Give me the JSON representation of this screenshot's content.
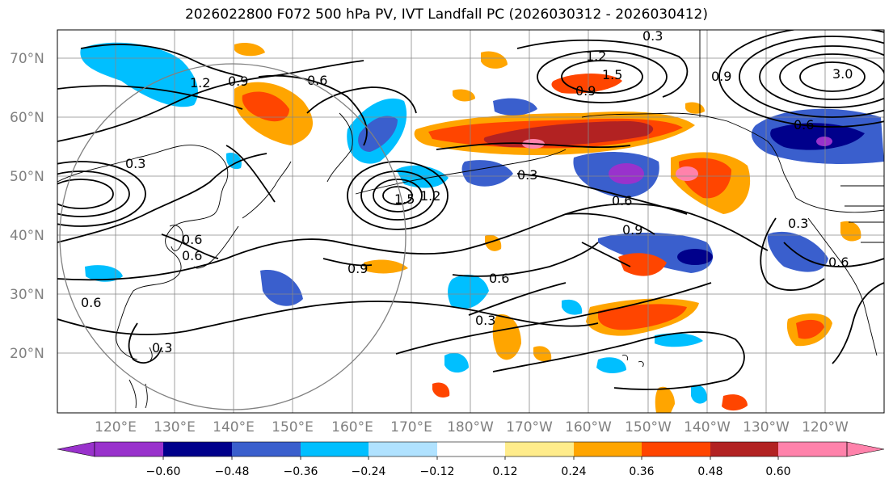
{
  "title": "2026022800 F072 500 hPa PV, IVT Landfall PC (2026030312 - 2026030412)",
  "lat_labels": [
    "70°N",
    "60°N",
    "50°N",
    "40°N",
    "30°N",
    "20°N"
  ],
  "lon_labels": [
    "120°E",
    "130°E",
    "140°E",
    "150°E",
    "160°E",
    "170°E",
    "180°W",
    "170°W",
    "160°W",
    "150°W",
    "140°W",
    "130°W",
    "120°W"
  ],
  "colorbar": {
    "ticks": [
      "−0.60",
      "−0.48",
      "−0.36",
      "−0.24",
      "−0.12",
      "0.12",
      "0.24",
      "0.36",
      "0.48",
      "0.60"
    ],
    "colors": [
      "#9932cc",
      "#00008b",
      "#3a5fcd",
      "#00bfff",
      "#b0e2ff",
      "#ffffff",
      "#ffec8b",
      "#ffa500",
      "#ff4500",
      "#b22222",
      "#ff82ab"
    ]
  },
  "contour_labels": [
    "0.3",
    "1.2",
    "0.9",
    "0.6",
    "1.2",
    "1.5",
    "0.9",
    "3.0",
    "0.9",
    "0.6",
    "0.3",
    "0.6",
    "0.6",
    "0.3",
    "0.6",
    "0.9",
    "0.6",
    "0.3",
    "0.3",
    "0.6",
    "0.9",
    "1.2",
    "0.6",
    "1.5",
    "0.3"
  ]
}
